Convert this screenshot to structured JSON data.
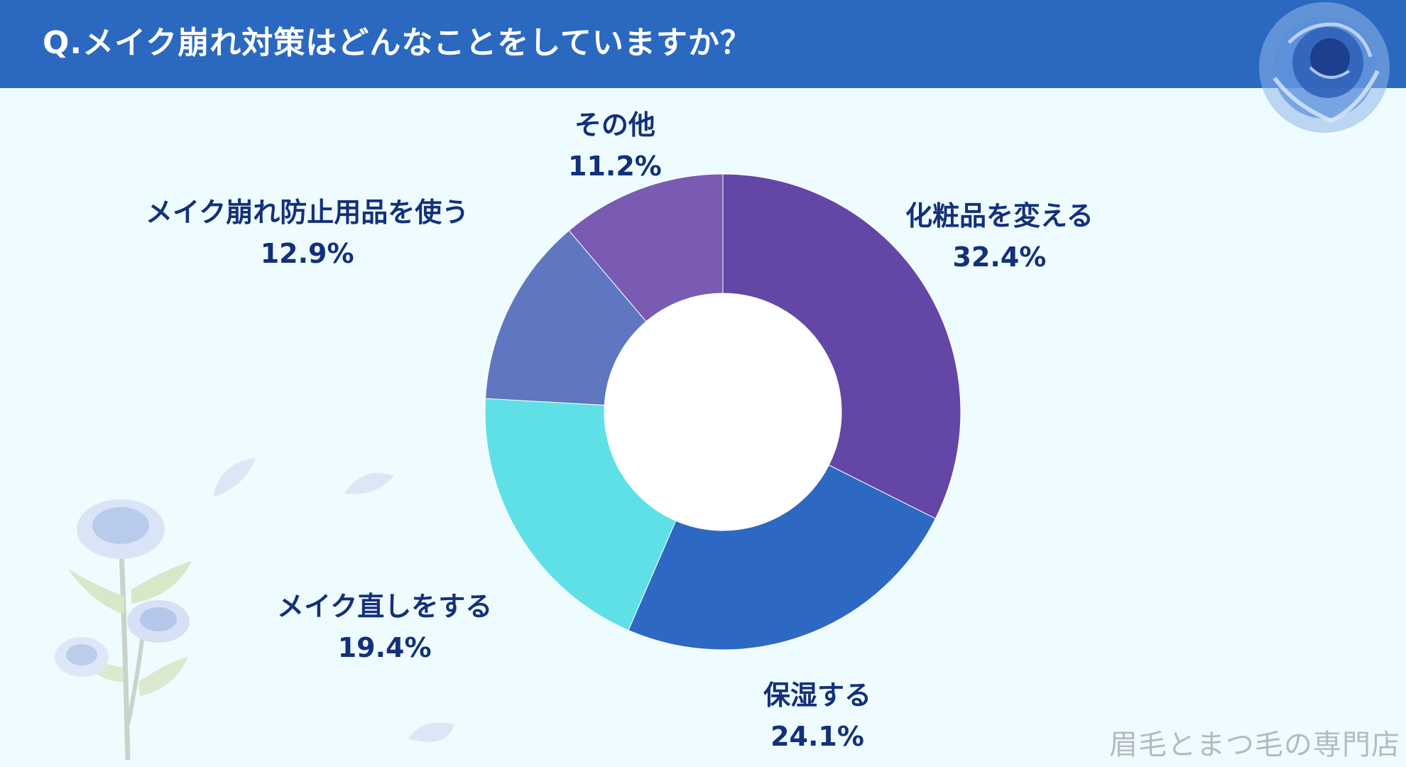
{
  "header": {
    "title": "Q.メイク崩れ対策はどんなことをしていますか？"
  },
  "watermark": "眉毛とまつ毛の専門店",
  "colors": {
    "header_bg": "#2b69c0",
    "background": "#eefcff",
    "label_text": "#13307a"
  },
  "decorations": {
    "top_right": "blue-rose-icon",
    "bottom_left": "rose-branch-icon",
    "petals": "petal-icon"
  },
  "chart_data": {
    "type": "pie",
    "donut": true,
    "title": "Q.メイク崩れ対策はどんなことをしていますか？",
    "slices": [
      {
        "name": "化粧品を変える",
        "value": 32.4,
        "label": "32.4%",
        "color": "#6446a6"
      },
      {
        "name": "保湿する",
        "value": 24.1,
        "label": "24.1%",
        "color": "#2d69c2"
      },
      {
        "name": "メイク直しをする",
        "value": 19.4,
        "label": "19.4%",
        "color": "#5fe0e6"
      },
      {
        "name": "メイク崩れ防止用品を使う",
        "value": 12.9,
        "label": "12.9%",
        "color": "#5f77c1"
      },
      {
        "name": "その他",
        "value": 11.2,
        "label": "11.2%",
        "color": "#7a5bb3"
      }
    ]
  }
}
